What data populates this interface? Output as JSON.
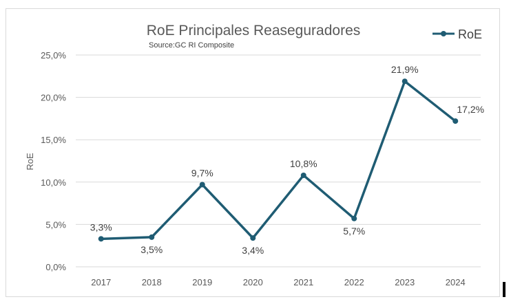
{
  "chart_data": {
    "type": "line",
    "title": "RoE Principales Reaseguradores",
    "subtitle": "Source:GC RI Composite",
    "xlabel": "",
    "ylabel": "RoE",
    "categories": [
      "2017",
      "2018",
      "2019",
      "2020",
      "2021",
      "2022",
      "2023",
      "2024"
    ],
    "series": [
      {
        "name": "RoE",
        "values": [
          3.3,
          3.5,
          9.7,
          3.4,
          10.8,
          5.7,
          21.9,
          17.2
        ],
        "labels": [
          "3,3%",
          "3,5%",
          "9,7%",
          "3,4%",
          "10,8%",
          "5,7%",
          "21,9%",
          "17,2%"
        ],
        "color": "#1f5c73"
      }
    ],
    "ylim": [
      0,
      25
    ],
    "yticks": [
      "0,0%",
      "5,0%",
      "10,0%",
      "15,0%",
      "20,0%",
      "25,0%"
    ],
    "grid": true,
    "legend": "top-right"
  }
}
